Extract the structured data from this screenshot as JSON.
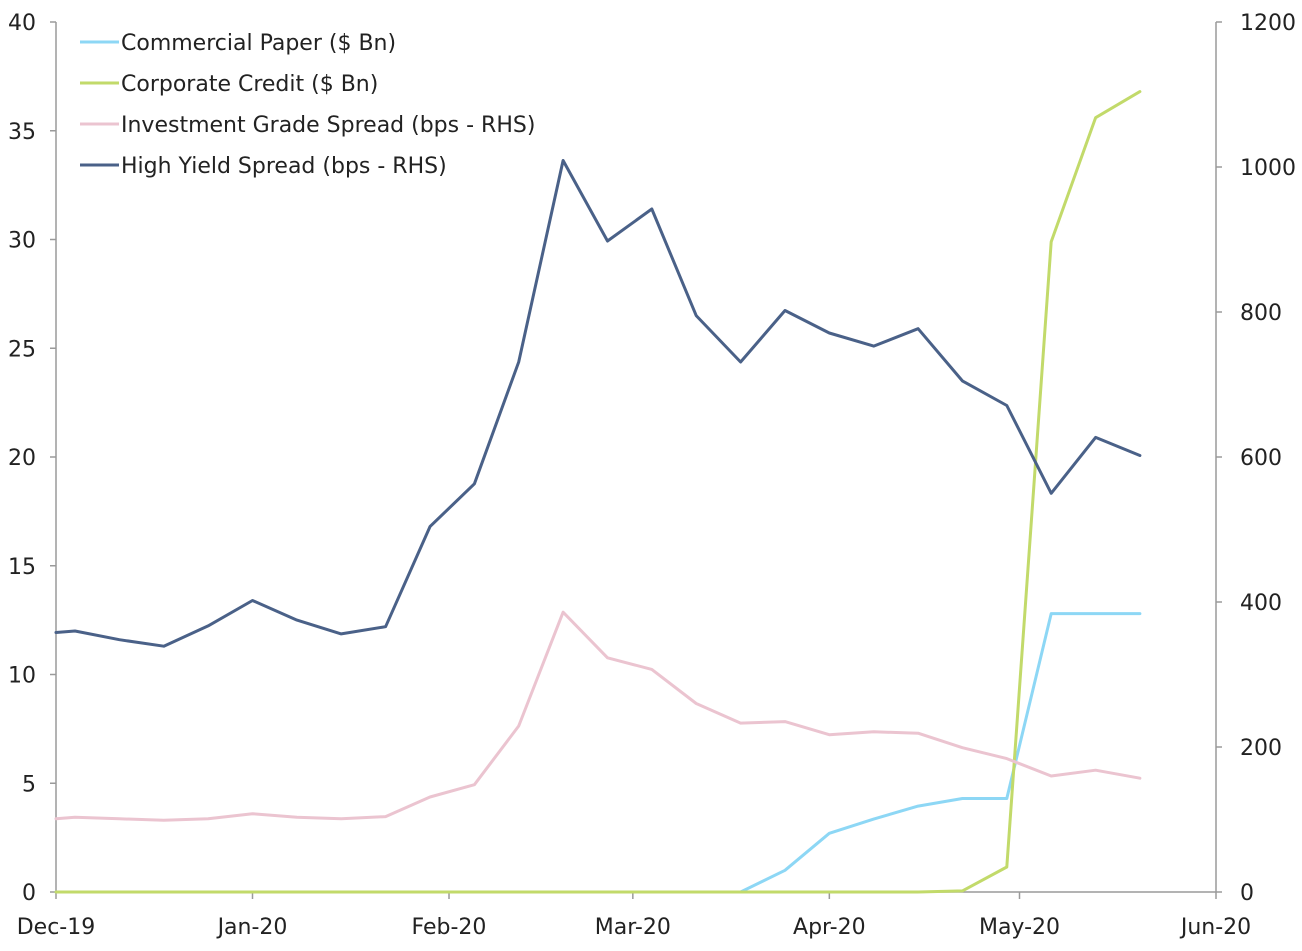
{
  "chart_data": {
    "type": "line",
    "title": "",
    "xlabel": "",
    "ylabel": "",
    "y2label": "",
    "grid": false,
    "legend_position": "top-left",
    "x_ticks": [
      "Dec-19",
      "Jan-20",
      "Feb-20",
      "Mar-20",
      "Apr-20",
      "May-20",
      "Jun-20"
    ],
    "x_tick_dates": [
      "2019-12-01",
      "2020-01-01",
      "2020-02-01",
      "2020-03-01",
      "2020-04-01",
      "2020-05-01",
      "2020-06-01"
    ],
    "x_range": [
      "2019-12-01",
      "2020-06-01"
    ],
    "y_left": {
      "min": 0,
      "max": 40,
      "ticks": [
        0,
        5,
        10,
        15,
        20,
        25,
        30,
        35,
        40
      ]
    },
    "y_right": {
      "min": 0,
      "max": 1200,
      "ticks": [
        0,
        200,
        400,
        600,
        800,
        1000,
        1200
      ]
    },
    "x": [
      "2019-12-01",
      "2019-12-04",
      "2019-12-11",
      "2019-12-18",
      "2019-12-25",
      "2020-01-01",
      "2020-01-08",
      "2020-01-15",
      "2020-01-22",
      "2020-01-29",
      "2020-02-05",
      "2020-02-12",
      "2020-02-19",
      "2020-02-26",
      "2020-03-04",
      "2020-03-11",
      "2020-03-18",
      "2020-03-25",
      "2020-04-01",
      "2020-04-08",
      "2020-04-15",
      "2020-04-22",
      "2020-04-29",
      "2020-05-06",
      "2020-05-13",
      "2020-05-20"
    ],
    "series": [
      {
        "name": "Commercial Paper ($ Bn)",
        "axis": "left",
        "color": "#8dd7f5",
        "values": [
          0,
          0,
          0,
          0,
          0,
          0,
          0,
          0,
          0,
          0,
          0,
          0,
          0,
          0,
          0,
          0,
          0,
          1.0,
          2.7,
          3.35,
          3.95,
          4.3,
          4.3,
          12.8,
          12.8,
          12.8
        ]
      },
      {
        "name": "Corporate Credit ($ Bn)",
        "axis": "left",
        "color": "#c2da6a",
        "values": [
          0,
          0,
          0,
          0,
          0,
          0,
          0,
          0,
          0,
          0,
          0,
          0,
          0,
          0,
          0,
          0,
          0,
          0,
          0,
          0,
          0,
          0.05,
          1.15,
          29.9,
          35.6,
          36.8
        ]
      },
      {
        "name": "Investment Grade Spread (bps - RHS)",
        "axis": "right",
        "color": "#ebc4d0",
        "values": [
          101,
          103,
          101,
          99,
          101,
          108,
          103,
          101,
          104,
          131,
          148,
          229,
          386,
          323,
          307,
          260,
          233,
          235,
          217,
          221,
          219,
          199,
          184,
          160,
          168,
          157
        ]
      },
      {
        "name": "High Yield Spread (bps - RHS)",
        "axis": "right",
        "color": "#4a6188",
        "values": [
          358,
          360,
          348,
          339,
          367,
          402,
          375,
          356,
          366,
          504,
          563,
          731,
          1009,
          898,
          942,
          795,
          731,
          802,
          771,
          753,
          777,
          705,
          671,
          550,
          627,
          602
        ]
      }
    ]
  }
}
